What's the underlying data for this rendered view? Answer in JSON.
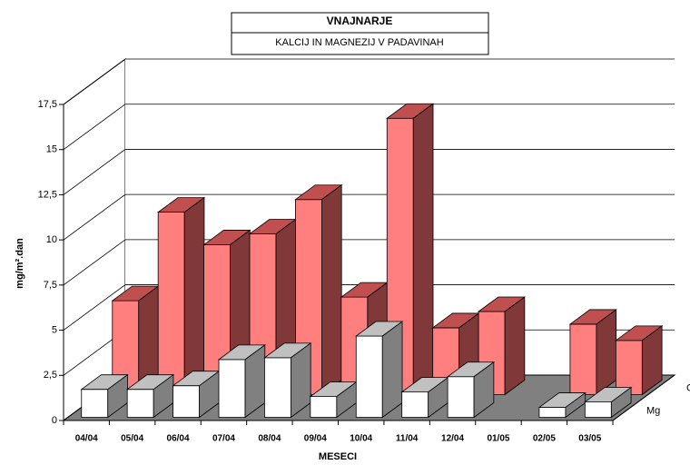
{
  "chart_data": {
    "type": "bar3d",
    "title": "VNAJNARJE",
    "subtitle": "KALCIJ IN MAGNEZIJ V PADAVINAH",
    "x_label": "MESECI",
    "y_label": "mg/m².dan",
    "categories": [
      "04/04",
      "05/04",
      "06/04",
      "07/04",
      "08/04",
      "09/04",
      "10/04",
      "11/04",
      "12/04",
      "01/05",
      "02/05",
      "03/05"
    ],
    "series": [
      {
        "name": "Ca",
        "color": "#ff7f7f",
        "values": [
          5.2,
          10.1,
          8.3,
          8.9,
          10.8,
          5.4,
          15.3,
          3.7,
          4.6,
          null,
          3.9,
          3.0
        ]
      },
      {
        "name": "Mg",
        "color": "#ffffff",
        "values": [
          1.55,
          1.55,
          1.75,
          3.2,
          3.3,
          1.15,
          4.5,
          1.4,
          2.25,
          null,
          0.55,
          0.85
        ]
      }
    ],
    "ylim": [
      0,
      17.5
    ],
    "yticks": [
      0,
      {
        "value": 2.5,
        "label": "2,5"
      },
      5,
      {
        "value": 7.5,
        "label": "7,5"
      },
      10,
      {
        "value": 12.5,
        "label": "12,5"
      },
      15,
      {
        "value": 17.5,
        "label": "17,5"
      }
    ],
    "grid": true
  }
}
